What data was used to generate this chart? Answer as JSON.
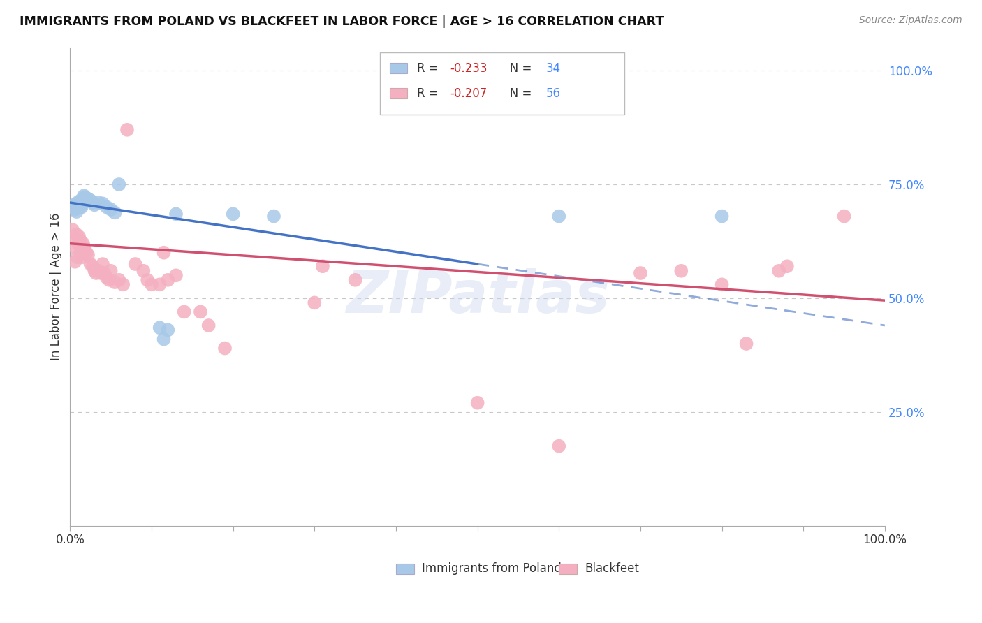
{
  "title": "IMMIGRANTS FROM POLAND VS BLACKFEET IN LABOR FORCE | AGE > 16 CORRELATION CHART",
  "source_text": "Source: ZipAtlas.com",
  "ylabel": "In Labor Force | Age > 16",
  "poland_scatter": [
    [
      0.003,
      0.7
    ],
    [
      0.005,
      0.705
    ],
    [
      0.006,
      0.695
    ],
    [
      0.007,
      0.7
    ],
    [
      0.008,
      0.69
    ],
    [
      0.009,
      0.71
    ],
    [
      0.01,
      0.698
    ],
    [
      0.011,
      0.705
    ],
    [
      0.012,
      0.7
    ],
    [
      0.013,
      0.715
    ],
    [
      0.014,
      0.7
    ],
    [
      0.015,
      0.708
    ],
    [
      0.016,
      0.718
    ],
    [
      0.017,
      0.725
    ],
    [
      0.018,
      0.722
    ],
    [
      0.02,
      0.72
    ],
    [
      0.022,
      0.718
    ],
    [
      0.025,
      0.715
    ],
    [
      0.028,
      0.71
    ],
    [
      0.03,
      0.705
    ],
    [
      0.035,
      0.71
    ],
    [
      0.04,
      0.708
    ],
    [
      0.045,
      0.7
    ],
    [
      0.05,
      0.695
    ],
    [
      0.055,
      0.688
    ],
    [
      0.06,
      0.75
    ],
    [
      0.11,
      0.435
    ],
    [
      0.115,
      0.41
    ],
    [
      0.12,
      0.43
    ],
    [
      0.13,
      0.685
    ],
    [
      0.2,
      0.685
    ],
    [
      0.25,
      0.68
    ],
    [
      0.6,
      0.68
    ],
    [
      0.8,
      0.68
    ]
  ],
  "blackfeet_scatter": [
    [
      0.003,
      0.65
    ],
    [
      0.005,
      0.63
    ],
    [
      0.006,
      0.58
    ],
    [
      0.007,
      0.61
    ],
    [
      0.008,
      0.64
    ],
    [
      0.009,
      0.59
    ],
    [
      0.01,
      0.62
    ],
    [
      0.011,
      0.635
    ],
    [
      0.012,
      0.615
    ],
    [
      0.013,
      0.625
    ],
    [
      0.014,
      0.6
    ],
    [
      0.015,
      0.59
    ],
    [
      0.016,
      0.62
    ],
    [
      0.017,
      0.6
    ],
    [
      0.018,
      0.61
    ],
    [
      0.02,
      0.6
    ],
    [
      0.022,
      0.595
    ],
    [
      0.025,
      0.575
    ],
    [
      0.028,
      0.57
    ],
    [
      0.03,
      0.56
    ],
    [
      0.032,
      0.555
    ],
    [
      0.035,
      0.56
    ],
    [
      0.038,
      0.555
    ],
    [
      0.04,
      0.575
    ],
    [
      0.042,
      0.555
    ],
    [
      0.045,
      0.545
    ],
    [
      0.048,
      0.54
    ],
    [
      0.05,
      0.56
    ],
    [
      0.055,
      0.535
    ],
    [
      0.06,
      0.54
    ],
    [
      0.065,
      0.53
    ],
    [
      0.07,
      0.87
    ],
    [
      0.08,
      0.575
    ],
    [
      0.09,
      0.56
    ],
    [
      0.095,
      0.54
    ],
    [
      0.1,
      0.53
    ],
    [
      0.11,
      0.53
    ],
    [
      0.115,
      0.6
    ],
    [
      0.12,
      0.54
    ],
    [
      0.13,
      0.55
    ],
    [
      0.14,
      0.47
    ],
    [
      0.16,
      0.47
    ],
    [
      0.17,
      0.44
    ],
    [
      0.19,
      0.39
    ],
    [
      0.3,
      0.49
    ],
    [
      0.31,
      0.57
    ],
    [
      0.35,
      0.54
    ],
    [
      0.5,
      0.27
    ],
    [
      0.6,
      0.175
    ],
    [
      0.7,
      0.555
    ],
    [
      0.75,
      0.56
    ],
    [
      0.8,
      0.53
    ],
    [
      0.83,
      0.4
    ],
    [
      0.87,
      0.56
    ],
    [
      0.88,
      0.57
    ],
    [
      0.95,
      0.68
    ]
  ],
  "poland_line_solid": {
    "x0": 0.0,
    "y0": 0.71,
    "x1": 0.5,
    "y1": 0.575
  },
  "poland_line_dash": {
    "x0": 0.5,
    "y0": 0.575,
    "x1": 1.0,
    "y1": 0.44
  },
  "blackfeet_line": {
    "x0": 0.0,
    "y0": 0.62,
    "x1": 1.0,
    "y1": 0.495
  },
  "poland_color": "#4472c4",
  "blackfeet_color": "#d05070",
  "poland_scatter_color": "#a8c8e8",
  "blackfeet_scatter_color": "#f4b0c0",
  "bg_color": "#ffffff",
  "grid_color": "#c8c8c8",
  "watermark": "ZIPatlas",
  "xlim": [
    0.0,
    1.0
  ],
  "ylim": [
    0.0,
    1.05
  ],
  "right_yticks": [
    1.0,
    0.75,
    0.5,
    0.25
  ],
  "right_yticklabels": [
    "100.0%",
    "75.0%",
    "50.0%",
    "25.0%"
  ],
  "legend_R1": "-0.233",
  "legend_N1": "34",
  "legend_R2": "-0.207",
  "legend_N2": "56"
}
